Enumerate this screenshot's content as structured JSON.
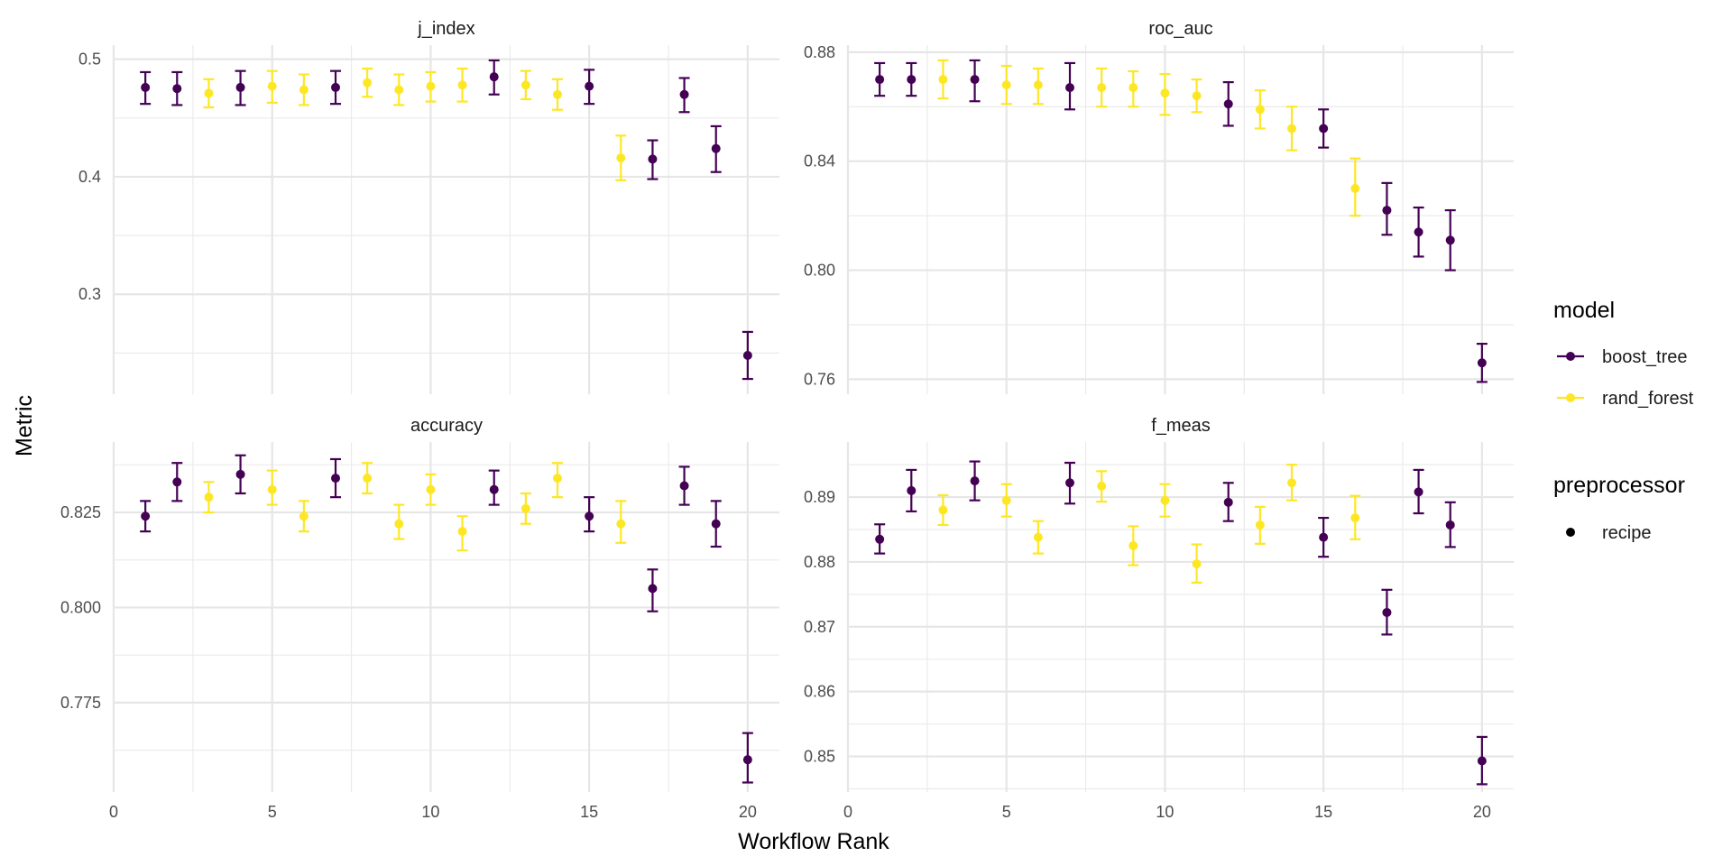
{
  "chart_data": {
    "type": "scatter",
    "xlabel": "Workflow Rank",
    "ylabel": "Metric",
    "x_ticks": [
      0,
      5,
      10,
      15,
      20
    ],
    "xlim": [
      0,
      21
    ],
    "grid": true,
    "legend": {
      "placement": "right",
      "model_title": "model",
      "model_items": [
        {
          "name": "boost_tree",
          "color": "#440154"
        },
        {
          "name": "rand_forest",
          "color": "#FDE725"
        }
      ],
      "preprocessor_title": "preprocessor",
      "preprocessor_items": [
        {
          "name": "recipe",
          "color": "#000000"
        }
      ]
    },
    "panels": [
      {
        "title": "j_index",
        "ylim": [
          0.215,
          0.512
        ],
        "y_ticks": [
          0.3,
          0.4,
          0.5
        ],
        "y_tick_labels": [
          "0.3",
          "0.4",
          "0.5"
        ],
        "points": [
          {
            "rank": 1,
            "model": "boost_tree",
            "mean": 0.476,
            "lower": 0.462,
            "upper": 0.489
          },
          {
            "rank": 2,
            "model": "boost_tree",
            "mean": 0.475,
            "lower": 0.461,
            "upper": 0.489
          },
          {
            "rank": 3,
            "model": "rand_forest",
            "mean": 0.471,
            "lower": 0.459,
            "upper": 0.483
          },
          {
            "rank": 4,
            "model": "boost_tree",
            "mean": 0.476,
            "lower": 0.461,
            "upper": 0.49
          },
          {
            "rank": 5,
            "model": "rand_forest",
            "mean": 0.477,
            "lower": 0.463,
            "upper": 0.49
          },
          {
            "rank": 6,
            "model": "rand_forest",
            "mean": 0.474,
            "lower": 0.461,
            "upper": 0.487
          },
          {
            "rank": 7,
            "model": "boost_tree",
            "mean": 0.476,
            "lower": 0.462,
            "upper": 0.49
          },
          {
            "rank": 8,
            "model": "rand_forest",
            "mean": 0.48,
            "lower": 0.468,
            "upper": 0.492
          },
          {
            "rank": 9,
            "model": "rand_forest",
            "mean": 0.474,
            "lower": 0.461,
            "upper": 0.487
          },
          {
            "rank": 10,
            "model": "rand_forest",
            "mean": 0.477,
            "lower": 0.464,
            "upper": 0.489
          },
          {
            "rank": 11,
            "model": "rand_forest",
            "mean": 0.478,
            "lower": 0.464,
            "upper": 0.492
          },
          {
            "rank": 12,
            "model": "boost_tree",
            "mean": 0.485,
            "lower": 0.47,
            "upper": 0.499
          },
          {
            "rank": 13,
            "model": "rand_forest",
            "mean": 0.478,
            "lower": 0.466,
            "upper": 0.49
          },
          {
            "rank": 14,
            "model": "rand_forest",
            "mean": 0.47,
            "lower": 0.457,
            "upper": 0.483
          },
          {
            "rank": 15,
            "model": "boost_tree",
            "mean": 0.477,
            "lower": 0.462,
            "upper": 0.491
          },
          {
            "rank": 16,
            "model": "rand_forest",
            "mean": 0.416,
            "lower": 0.397,
            "upper": 0.435
          },
          {
            "rank": 17,
            "model": "boost_tree",
            "mean": 0.415,
            "lower": 0.398,
            "upper": 0.431
          },
          {
            "rank": 18,
            "model": "boost_tree",
            "mean": 0.47,
            "lower": 0.455,
            "upper": 0.484
          },
          {
            "rank": 19,
            "model": "boost_tree",
            "mean": 0.424,
            "lower": 0.404,
            "upper": 0.443
          },
          {
            "rank": 20,
            "model": "boost_tree",
            "mean": 0.248,
            "lower": 0.228,
            "upper": 0.268
          }
        ]
      },
      {
        "title": "roc_auc",
        "ylim": [
          0.7545,
          0.8826
        ],
        "y_ticks": [
          0.76,
          0.8,
          0.84,
          0.88
        ],
        "y_tick_labels": [
          "0.76",
          "0.80",
          "0.84",
          "0.88"
        ],
        "points": [
          {
            "rank": 1,
            "model": "boost_tree",
            "mean": 0.87,
            "lower": 0.864,
            "upper": 0.876
          },
          {
            "rank": 2,
            "model": "boost_tree",
            "mean": 0.87,
            "lower": 0.864,
            "upper": 0.876
          },
          {
            "rank": 3,
            "model": "rand_forest",
            "mean": 0.87,
            "lower": 0.863,
            "upper": 0.877
          },
          {
            "rank": 4,
            "model": "boost_tree",
            "mean": 0.87,
            "lower": 0.862,
            "upper": 0.877
          },
          {
            "rank": 5,
            "model": "rand_forest",
            "mean": 0.868,
            "lower": 0.861,
            "upper": 0.875
          },
          {
            "rank": 6,
            "model": "rand_forest",
            "mean": 0.868,
            "lower": 0.861,
            "upper": 0.874
          },
          {
            "rank": 7,
            "model": "boost_tree",
            "mean": 0.867,
            "lower": 0.859,
            "upper": 0.876
          },
          {
            "rank": 8,
            "model": "rand_forest",
            "mean": 0.867,
            "lower": 0.86,
            "upper": 0.874
          },
          {
            "rank": 9,
            "model": "rand_forest",
            "mean": 0.867,
            "lower": 0.86,
            "upper": 0.873
          },
          {
            "rank": 10,
            "model": "rand_forest",
            "mean": 0.865,
            "lower": 0.857,
            "upper": 0.872
          },
          {
            "rank": 11,
            "model": "rand_forest",
            "mean": 0.864,
            "lower": 0.858,
            "upper": 0.87
          },
          {
            "rank": 12,
            "model": "boost_tree",
            "mean": 0.861,
            "lower": 0.853,
            "upper": 0.869
          },
          {
            "rank": 13,
            "model": "rand_forest",
            "mean": 0.859,
            "lower": 0.852,
            "upper": 0.866
          },
          {
            "rank": 14,
            "model": "rand_forest",
            "mean": 0.852,
            "lower": 0.844,
            "upper": 0.86
          },
          {
            "rank": 15,
            "model": "boost_tree",
            "mean": 0.852,
            "lower": 0.845,
            "upper": 0.859
          },
          {
            "rank": 16,
            "model": "rand_forest",
            "mean": 0.83,
            "lower": 0.82,
            "upper": 0.841
          },
          {
            "rank": 17,
            "model": "boost_tree",
            "mean": 0.822,
            "lower": 0.813,
            "upper": 0.832
          },
          {
            "rank": 18,
            "model": "boost_tree",
            "mean": 0.814,
            "lower": 0.805,
            "upper": 0.823
          },
          {
            "rank": 19,
            "model": "boost_tree",
            "mean": 0.811,
            "lower": 0.8,
            "upper": 0.822
          },
          {
            "rank": 20,
            "model": "boost_tree",
            "mean": 0.766,
            "lower": 0.759,
            "upper": 0.773
          }
        ]
      },
      {
        "title": "accuracy",
        "ylim": [
          0.7515,
          0.8435
        ],
        "y_ticks": [
          0.775,
          0.8,
          0.825
        ],
        "y_tick_labels": [
          "0.775",
          "0.800",
          "0.825"
        ],
        "points": [
          {
            "rank": 1,
            "model": "boost_tree",
            "mean": 0.824,
            "lower": 0.82,
            "upper": 0.828
          },
          {
            "rank": 2,
            "model": "boost_tree",
            "mean": 0.833,
            "lower": 0.828,
            "upper": 0.838
          },
          {
            "rank": 3,
            "model": "rand_forest",
            "mean": 0.829,
            "lower": 0.825,
            "upper": 0.833
          },
          {
            "rank": 4,
            "model": "boost_tree",
            "mean": 0.835,
            "lower": 0.83,
            "upper": 0.84
          },
          {
            "rank": 5,
            "model": "rand_forest",
            "mean": 0.831,
            "lower": 0.827,
            "upper": 0.836
          },
          {
            "rank": 6,
            "model": "rand_forest",
            "mean": 0.824,
            "lower": 0.82,
            "upper": 0.828
          },
          {
            "rank": 7,
            "model": "boost_tree",
            "mean": 0.834,
            "lower": 0.829,
            "upper": 0.839
          },
          {
            "rank": 8,
            "model": "rand_forest",
            "mean": 0.834,
            "lower": 0.83,
            "upper": 0.838
          },
          {
            "rank": 9,
            "model": "rand_forest",
            "mean": 0.822,
            "lower": 0.818,
            "upper": 0.827
          },
          {
            "rank": 10,
            "model": "rand_forest",
            "mean": 0.831,
            "lower": 0.827,
            "upper": 0.835
          },
          {
            "rank": 11,
            "model": "rand_forest",
            "mean": 0.82,
            "lower": 0.815,
            "upper": 0.824
          },
          {
            "rank": 12,
            "model": "boost_tree",
            "mean": 0.831,
            "lower": 0.827,
            "upper": 0.836
          },
          {
            "rank": 13,
            "model": "rand_forest",
            "mean": 0.826,
            "lower": 0.822,
            "upper": 0.83
          },
          {
            "rank": 14,
            "model": "rand_forest",
            "mean": 0.834,
            "lower": 0.829,
            "upper": 0.838
          },
          {
            "rank": 15,
            "model": "boost_tree",
            "mean": 0.824,
            "lower": 0.82,
            "upper": 0.829
          },
          {
            "rank": 16,
            "model": "rand_forest",
            "mean": 0.822,
            "lower": 0.817,
            "upper": 0.828
          },
          {
            "rank": 17,
            "model": "boost_tree",
            "mean": 0.805,
            "lower": 0.799,
            "upper": 0.81
          },
          {
            "rank": 18,
            "model": "boost_tree",
            "mean": 0.832,
            "lower": 0.827,
            "upper": 0.837
          },
          {
            "rank": 19,
            "model": "boost_tree",
            "mean": 0.822,
            "lower": 0.816,
            "upper": 0.828
          },
          {
            "rank": 20,
            "model": "boost_tree",
            "mean": 0.76,
            "lower": 0.754,
            "upper": 0.767
          }
        ]
      },
      {
        "title": "f_meas",
        "ylim": [
          0.8445,
          0.8985
        ],
        "y_ticks": [
          0.85,
          0.86,
          0.87,
          0.88,
          0.89
        ],
        "y_tick_labels": [
          "0.85",
          "0.86",
          "0.87",
          "0.88",
          "0.89"
        ],
        "points": [
          {
            "rank": 1,
            "model": "boost_tree",
            "mean": 0.8835,
            "lower": 0.8813,
            "upper": 0.8858
          },
          {
            "rank": 2,
            "model": "boost_tree",
            "mean": 0.891,
            "lower": 0.8878,
            "upper": 0.8942
          },
          {
            "rank": 3,
            "model": "rand_forest",
            "mean": 0.888,
            "lower": 0.8857,
            "upper": 0.8903
          },
          {
            "rank": 4,
            "model": "boost_tree",
            "mean": 0.8925,
            "lower": 0.8895,
            "upper": 0.8955
          },
          {
            "rank": 5,
            "model": "rand_forest",
            "mean": 0.8895,
            "lower": 0.887,
            "upper": 0.892
          },
          {
            "rank": 6,
            "model": "rand_forest",
            "mean": 0.8838,
            "lower": 0.8813,
            "upper": 0.8863
          },
          {
            "rank": 7,
            "model": "boost_tree",
            "mean": 0.8922,
            "lower": 0.889,
            "upper": 0.8953
          },
          {
            "rank": 8,
            "model": "rand_forest",
            "mean": 0.8917,
            "lower": 0.8893,
            "upper": 0.894
          },
          {
            "rank": 9,
            "model": "rand_forest",
            "mean": 0.8825,
            "lower": 0.8795,
            "upper": 0.8855
          },
          {
            "rank": 10,
            "model": "rand_forest",
            "mean": 0.8895,
            "lower": 0.887,
            "upper": 0.892
          },
          {
            "rank": 11,
            "model": "rand_forest",
            "mean": 0.8797,
            "lower": 0.8768,
            "upper": 0.8827
          },
          {
            "rank": 12,
            "model": "boost_tree",
            "mean": 0.8892,
            "lower": 0.8863,
            "upper": 0.8922
          },
          {
            "rank": 13,
            "model": "rand_forest",
            "mean": 0.8857,
            "lower": 0.8828,
            "upper": 0.8885
          },
          {
            "rank": 14,
            "model": "rand_forest",
            "mean": 0.8922,
            "lower": 0.8895,
            "upper": 0.895
          },
          {
            "rank": 15,
            "model": "boost_tree",
            "mean": 0.8838,
            "lower": 0.8808,
            "upper": 0.8868
          },
          {
            "rank": 16,
            "model": "rand_forest",
            "mean": 0.8868,
            "lower": 0.8835,
            "upper": 0.8902
          },
          {
            "rank": 17,
            "model": "boost_tree",
            "mean": 0.8722,
            "lower": 0.8688,
            "upper": 0.8757
          },
          {
            "rank": 18,
            "model": "boost_tree",
            "mean": 0.8908,
            "lower": 0.8875,
            "upper": 0.8942
          },
          {
            "rank": 19,
            "model": "boost_tree",
            "mean": 0.8857,
            "lower": 0.8823,
            "upper": 0.8892
          },
          {
            "rank": 20,
            "model": "boost_tree",
            "mean": 0.8493,
            "lower": 0.8457,
            "upper": 0.853
          }
        ]
      }
    ]
  }
}
